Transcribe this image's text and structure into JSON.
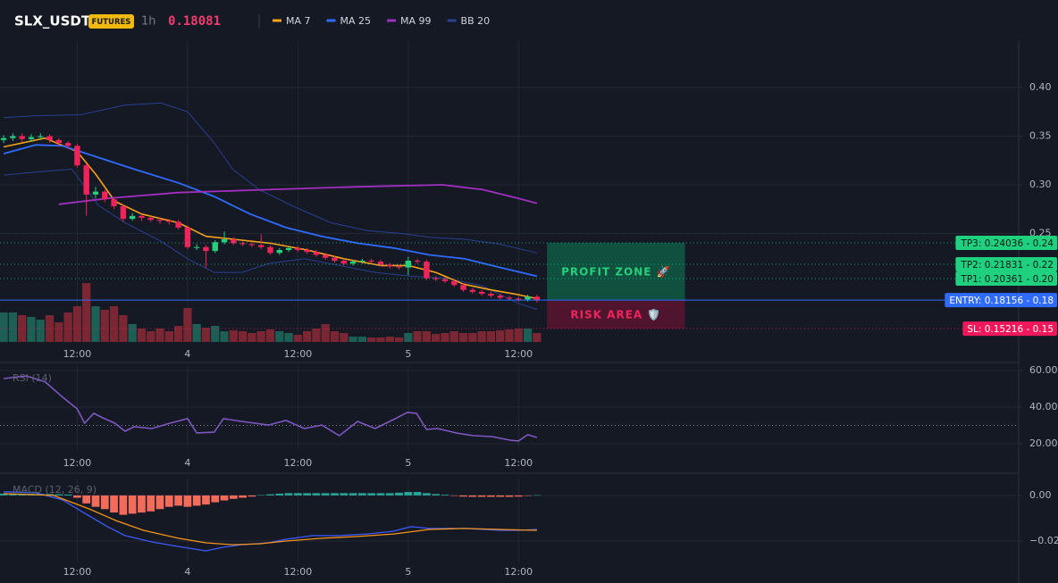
{
  "header": {
    "symbol": "SLX_USDT",
    "badge": "FUTURES",
    "interval": "1h",
    "last_price": 0.18081
  },
  "chart_data": [
    {
      "type": "candlestick",
      "x": [
        0,
        1,
        2,
        3,
        4,
        5,
        6,
        7,
        8,
        9,
        10,
        11,
        12,
        13,
        14,
        15,
        16,
        17,
        18,
        19,
        20,
        21,
        22,
        23,
        24,
        25,
        26,
        27,
        28,
        29,
        30,
        31,
        32,
        33,
        34,
        35,
        36,
        37,
        38,
        39,
        40,
        41,
        42,
        43,
        44,
        45,
        46,
        47,
        48,
        49,
        50,
        51,
        52,
        53,
        54,
        55,
        56,
        57,
        58
      ],
      "open": [
        0.346,
        0.348,
        0.35,
        0.347,
        0.349,
        0.35,
        0.346,
        0.343,
        0.34,
        0.32,
        0.29,
        0.293,
        0.285,
        0.278,
        0.265,
        0.268,
        0.266,
        0.264,
        0.263,
        0.262,
        0.256,
        0.236,
        0.236,
        0.232,
        0.241,
        0.244,
        0.24,
        0.239,
        0.238,
        0.236,
        0.23,
        0.233,
        0.235,
        0.233,
        0.231,
        0.228,
        0.225,
        0.222,
        0.219,
        0.221,
        0.222,
        0.221,
        0.218,
        0.216,
        0.215,
        0.222,
        0.221,
        0.204,
        0.203,
        0.201,
        0.197,
        0.192,
        0.19,
        0.188,
        0.186,
        0.184,
        0.183,
        0.182,
        0.185
      ],
      "high": [
        0.351,
        0.353,
        0.353,
        0.352,
        0.353,
        0.352,
        0.348,
        0.345,
        0.342,
        0.322,
        0.298,
        0.295,
        0.287,
        0.28,
        0.271,
        0.27,
        0.268,
        0.266,
        0.265,
        0.264,
        0.258,
        0.239,
        0.238,
        0.243,
        0.252,
        0.246,
        0.242,
        0.241,
        0.249,
        0.238,
        0.235,
        0.237,
        0.237,
        0.235,
        0.233,
        0.23,
        0.227,
        0.224,
        0.223,
        0.224,
        0.224,
        0.223,
        0.22,
        0.218,
        0.226,
        0.224,
        0.223,
        0.206,
        0.205,
        0.203,
        0.199,
        0.194,
        0.192,
        0.19,
        0.188,
        0.186,
        0.185,
        0.187,
        0.187
      ],
      "low": [
        0.343,
        0.345,
        0.344,
        0.344,
        0.346,
        0.343,
        0.34,
        0.337,
        0.318,
        0.268,
        0.286,
        0.282,
        0.275,
        0.262,
        0.263,
        0.263,
        0.262,
        0.26,
        0.259,
        0.254,
        0.234,
        0.233,
        0.215,
        0.23,
        0.239,
        0.238,
        0.237,
        0.236,
        0.234,
        0.228,
        0.228,
        0.231,
        0.231,
        0.229,
        0.226,
        0.223,
        0.22,
        0.217,
        0.217,
        0.219,
        0.219,
        0.216,
        0.214,
        0.213,
        0.207,
        0.219,
        0.202,
        0.201,
        0.199,
        0.195,
        0.19,
        0.188,
        0.186,
        0.184,
        0.182,
        0.181,
        0.18,
        0.18,
        0.179
      ],
      "close": [
        0.348,
        0.35,
        0.347,
        0.349,
        0.35,
        0.346,
        0.343,
        0.34,
        0.32,
        0.29,
        0.293,
        0.285,
        0.278,
        0.265,
        0.268,
        0.266,
        0.264,
        0.263,
        0.262,
        0.256,
        0.236,
        0.236,
        0.232,
        0.241,
        0.244,
        0.24,
        0.239,
        0.238,
        0.236,
        0.23,
        0.233,
        0.235,
        0.233,
        0.231,
        0.228,
        0.225,
        0.222,
        0.219,
        0.221,
        0.222,
        0.221,
        0.218,
        0.216,
        0.215,
        0.222,
        0.221,
        0.204,
        0.203,
        0.201,
        0.197,
        0.192,
        0.19,
        0.188,
        0.186,
        0.184,
        0.183,
        0.182,
        0.185,
        0.181
      ],
      "volume": [
        33,
        33,
        30,
        28,
        25,
        30,
        22,
        33,
        40,
        66,
        40,
        36,
        40,
        30,
        20,
        15,
        12,
        15,
        12,
        18,
        38,
        20,
        16,
        18,
        12,
        13,
        12,
        10,
        12,
        14,
        12,
        10,
        8,
        12,
        15,
        20,
        12,
        10,
        6,
        6,
        5,
        5,
        6,
        5,
        10,
        12,
        12,
        9,
        10,
        12,
        10,
        10,
        12,
        12,
        13,
        14,
        15,
        15,
        10
      ],
      "up_color": "#26d07c",
      "down_color": "#f0245b",
      "volume_up_color": "#1d5e55",
      "volume_down_color": "#7b2733",
      "series": [
        {
          "name": "MA 7",
          "color": "#f7a21b",
          "x": [
            0,
            4.5,
            8,
            10,
            12.1,
            15,
            19,
            22,
            25,
            29,
            33,
            37,
            41,
            44,
            47,
            50,
            53,
            56,
            58
          ],
          "values": [
            0.339,
            0.348,
            0.334,
            0.311,
            0.283,
            0.27,
            0.261,
            0.247,
            0.244,
            0.24,
            0.233,
            0.224,
            0.217,
            0.217,
            0.21,
            0.198,
            0.192,
            0.187,
            0.183
          ]
        },
        {
          "name": "MA 25",
          "color": "#2f6bff",
          "x": [
            0,
            3.5,
            6.4,
            10,
            14.2,
            19,
            22.9,
            26.8,
            30.7,
            34.6,
            38.5,
            42.4,
            46.3,
            50.1,
            54,
            58
          ],
          "values": [
            0.332,
            0.341,
            0.34,
            0.329,
            0.316,
            0.302,
            0.288,
            0.27,
            0.256,
            0.247,
            0.24,
            0.235,
            0.228,
            0.224,
            0.215,
            0.206
          ]
        },
        {
          "name": "MA 99",
          "color": "#a12fc0",
          "x": [
            6,
            11.3,
            19,
            28.8,
            38.5,
            47.7,
            52.1,
            56,
            58
          ],
          "values": [
            0.28,
            0.286,
            0.292,
            0.295,
            0.298,
            0.3,
            0.295,
            0.286,
            0.281
          ]
        }
      ],
      "bollinger": {
        "name": "BB 20",
        "color": "#2a3f8f",
        "upper": {
          "x": [
            0,
            3.5,
            8.4,
            13.2,
            17.1,
            20,
            22.9,
            24.9,
            27.8,
            31.7,
            35.6,
            39.5,
            43.3,
            46.3,
            50.1,
            54,
            58
          ],
          "values": [
            0.369,
            0.371,
            0.372,
            0.382,
            0.384,
            0.375,
            0.343,
            0.316,
            0.295,
            0.277,
            0.261,
            0.253,
            0.25,
            0.246,
            0.244,
            0.239,
            0.23
          ]
        },
        "lower": {
          "x": [
            0,
            3.5,
            7.4,
            10.3,
            13.2,
            17.1,
            20,
            22.9,
            25.9,
            28.8,
            32.7,
            36.5,
            40.4,
            44.3,
            48.2,
            52.1,
            56,
            58
          ],
          "values": [
            0.31,
            0.313,
            0.316,
            0.279,
            0.261,
            0.242,
            0.224,
            0.21,
            0.21,
            0.219,
            0.224,
            0.217,
            0.21,
            0.206,
            0.204,
            0.196,
            0.178,
            0.172
          ]
        }
      },
      "levels": [
        {
          "value": 0.24036,
          "label": "TP3: 0.24036 - 0.24",
          "color": "#1fd17f",
          "text_color": "#0b1a12",
          "style": "dotted"
        },
        {
          "value": 0.21831,
          "label": "TP2: 0.21831 - 0.22",
          "color": "#1fd17f",
          "text_color": "#0b1a12",
          "style": "dotted"
        },
        {
          "value": 0.20361,
          "label": "TP1: 0.20361 - 0.20",
          "color": "#1fd17f",
          "text_color": "#0b1a12",
          "style": "dotted"
        },
        {
          "value": 0.18156,
          "label": "ENTRY: 0.18156 - 0.18",
          "color": "#2f6bff",
          "text_color": "#ffffff",
          "style": "solid"
        },
        {
          "value": 0.15216,
          "label": "SL: 0.15216 - 0.15",
          "color": "#f0185a",
          "text_color": "#ffffff",
          "style": "dotted"
        }
      ],
      "zones": [
        {
          "label": "PROFIT ZONE 🚀",
          "from": 0.24036,
          "to": 0.18156,
          "x": [
            59.1,
            74.1
          ],
          "color": "#0e5a43",
          "text_color": "#26d07c"
        },
        {
          "label": "RISK AREA 🛡️",
          "from": 0.18156,
          "to": 0.15216,
          "x": [
            59.1,
            74.1
          ],
          "color": "#5a1530",
          "text_color": "#f0245b"
        }
      ],
      "xlim": [
        -0.4,
        110.4
      ],
      "ylim": [
        0.1385,
        0.4477
      ],
      "xticks": [
        {
          "value": 8,
          "label": "12:00"
        },
        {
          "value": 20,
          "label": "4"
        },
        {
          "value": 32,
          "label": "12:00"
        },
        {
          "value": 44,
          "label": "5"
        },
        {
          "value": 56,
          "label": "12:00"
        }
      ],
      "yticks": [
        0.25,
        {
          "value": 0.3,
          "label": "0.30"
        },
        0.35,
        {
          "value": 0.4,
          "label": "0.40"
        }
      ],
      "grid": true
    },
    {
      "type": "line",
      "title": "RSI (14)",
      "x": [
        0,
        2.5,
        4.5,
        6.4,
        8,
        8.8,
        9.8,
        10.8,
        12.1,
        13.2,
        14.2,
        16.1,
        18.1,
        20,
        21,
        22.9,
        23.9,
        25.9,
        28.8,
        30.7,
        32.7,
        34.6,
        36.5,
        38.5,
        40.4,
        42.4,
        43.9,
        44.9,
        46,
        47.2,
        49.2,
        51.1,
        53.1,
        55,
        56,
        57,
        58
      ],
      "values": [
        55.6,
        57,
        53.8,
        45.5,
        39,
        31.2,
        36.6,
        34.1,
        31.2,
        26.8,
        29.3,
        28.3,
        31.2,
        33.7,
        25.9,
        26.3,
        33.7,
        32.2,
        30.2,
        32.7,
        28.3,
        30.2,
        24.4,
        32.2,
        28.3,
        33.2,
        37.1,
        36.6,
        27.8,
        28.3,
        25.9,
        24.4,
        23.9,
        22,
        21.5,
        24.9,
        23.4
      ],
      "color": "#7e57c2",
      "levels": [
        30
      ],
      "xlim": [
        -0.4,
        110.4
      ],
      "ylim": [
        16.1,
        62.4
      ],
      "xticks": [
        {
          "value": 8,
          "label": "12:00"
        },
        {
          "value": 20,
          "label": "4"
        },
        {
          "value": 32,
          "label": "12:00"
        },
        {
          "value": 44,
          "label": "5"
        },
        {
          "value": 56,
          "label": "12:00"
        }
      ],
      "yticks": [
        {
          "value": 20,
          "label": "20.00"
        },
        {
          "value": 40,
          "label": "40.00"
        },
        {
          "value": 60,
          "label": "60.00"
        }
      ],
      "grid": true
    },
    {
      "type": "macd",
      "title": "MACD (12, 26, 9)",
      "x": [
        0,
        1,
        2,
        3,
        4,
        5,
        6,
        7,
        8,
        9,
        10,
        11,
        12,
        13,
        14,
        15,
        16,
        17,
        18,
        19,
        20,
        21,
        22,
        23,
        24,
        25,
        26,
        27,
        28,
        29,
        30,
        31,
        32,
        33,
        34,
        35,
        36,
        37,
        38,
        39,
        40,
        41,
        42,
        43,
        44,
        45,
        46,
        47,
        48,
        49,
        50,
        51,
        52,
        53,
        54,
        55,
        56,
        57,
        58
      ],
      "histogram": [
        0.0008,
        0.0008,
        0.0008,
        0.0007,
        0.0007,
        0.0006,
        0.0005,
        0.0004,
        -0.001,
        -0.0035,
        -0.005,
        -0.006,
        -0.0075,
        -0.0085,
        -0.008,
        -0.0075,
        -0.007,
        -0.006,
        -0.005,
        -0.0045,
        -0.005,
        -0.0045,
        -0.004,
        -0.003,
        -0.0022,
        -0.0015,
        -0.001,
        -0.0005,
        0.0002,
        0.0005,
        0.0008,
        0.001,
        0.001,
        0.001,
        0.001,
        0.001,
        0.001,
        0.001,
        0.001,
        0.001,
        0.001,
        0.001,
        0.001,
        0.0012,
        0.0015,
        0.0015,
        0.001,
        0.0006,
        0.0003,
        -0.0002,
        -0.0005,
        -0.0006,
        -0.0006,
        -0.0006,
        -0.0006,
        -0.0006,
        -0.0005,
        -0.0002,
        0.0001
      ],
      "up_color": "#26a69a",
      "down_color": "#f26b5b",
      "series": [
        {
          "color": "#3d5afe",
          "x": [
            0,
            3.5,
            6.4,
            9.3,
            11.3,
            13.2,
            16.1,
            19,
            22,
            23.9,
            25.9,
            28.8,
            30.7,
            33.6,
            36.5,
            39.5,
            42.4,
            44.3,
            46.3,
            50.1,
            54,
            56,
            58
          ],
          "values": [
            0.0016,
            0.0012,
            -0.002,
            -0.009,
            -0.0137,
            -0.0176,
            -0.0204,
            -0.0224,
            -0.0243,
            -0.0227,
            -0.0216,
            -0.0208,
            -0.0192,
            -0.0176,
            -0.0176,
            -0.0169,
            -0.0157,
            -0.0137,
            -0.0145,
            -0.0145,
            -0.0153,
            -0.0153,
            -0.0149
          ]
        },
        {
          "color": "#f7931a",
          "x": [
            0,
            5.4,
            9.3,
            12.2,
            15.2,
            19,
            22,
            24.9,
            27.8,
            30.7,
            34.6,
            38.5,
            42.4,
            46.3,
            50.1,
            54,
            58
          ],
          "values": [
            0.0008,
            0,
            -0.0059,
            -0.011,
            -0.0153,
            -0.0188,
            -0.0208,
            -0.0216,
            -0.0212,
            -0.02,
            -0.0188,
            -0.018,
            -0.0169,
            -0.0149,
            -0.0145,
            -0.0149,
            -0.0153
          ]
        }
      ],
      "xlim": [
        -0.4,
        110.4
      ],
      "ylim": [
        -0.0294,
        0.0078
      ],
      "xticks": [
        {
          "value": 8,
          "label": "12:00"
        },
        {
          "value": 20,
          "label": "4"
        },
        {
          "value": 32,
          "label": "12:00"
        },
        {
          "value": 44,
          "label": "5"
        },
        {
          "value": 56,
          "label": "12:00"
        }
      ],
      "yticks": [
        {
          "value": -0.02,
          "label": "−0.02"
        },
        {
          "value": 0,
          "label": "0.00"
        }
      ],
      "grid": true
    }
  ]
}
